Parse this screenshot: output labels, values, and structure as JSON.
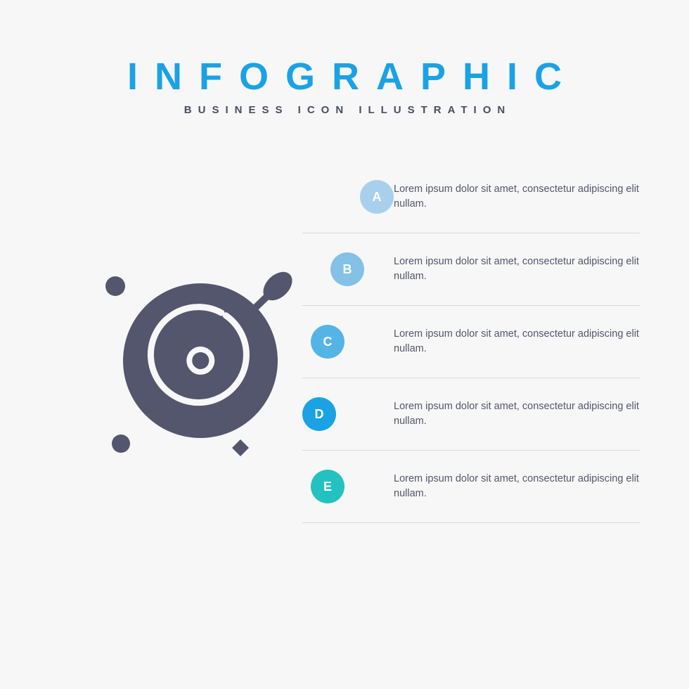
{
  "type": "infographic",
  "background_color": "#f7f7f7",
  "header": {
    "title": "INFOGRAPHIC",
    "title_color": "#1ba2e4",
    "title_fontsize": 54,
    "title_letter_spacing": 24,
    "subtitle": "BUSINESS ICON ILLUSTRATION",
    "subtitle_color": "#4a4c62",
    "subtitle_fontsize": 15,
    "subtitle_letter_spacing": 9
  },
  "icon": {
    "name": "astronomy-planet-icon",
    "fill_color": "#54566d",
    "size": 330
  },
  "steps": {
    "text_color": "#54566d",
    "badge_text_color": "#ffffff",
    "badge_diameter": 48,
    "badge_left_offsets": [
      82,
      40,
      12,
      0,
      12
    ],
    "divider_color": "rgba(0,0,0,0.12)",
    "items": [
      {
        "letter": "A",
        "color": "#a8d0ec",
        "text": "Lorem ipsum dolor sit amet, consectetur adipiscing elit nullam."
      },
      {
        "letter": "B",
        "color": "#83c1e7",
        "text": "Lorem ipsum dolor sit amet, consectetur adipiscing elit nullam."
      },
      {
        "letter": "C",
        "color": "#55b4e6",
        "text": "Lorem ipsum dolor sit amet, consectetur adipiscing elit nullam."
      },
      {
        "letter": "D",
        "color": "#1ba2e4",
        "text": "Lorem ipsum dolor sit amet, consectetur adipiscing elit nullam."
      },
      {
        "letter": "E",
        "color": "#24c1c1",
        "text": "Lorem ipsum dolor sit amet, consectetur adipiscing elit nullam."
      }
    ]
  }
}
